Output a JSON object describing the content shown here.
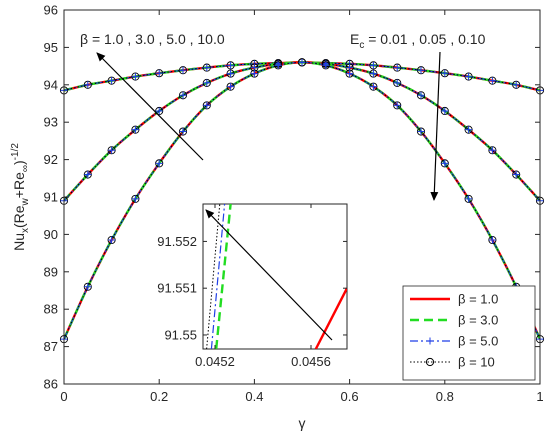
{
  "colors": {
    "red": "#ff0000",
    "green": "#22dd22",
    "blue": "#1f3fe6",
    "black": "#000000",
    "axis": "#262626"
  },
  "chart_data": [
    {
      "type": "line",
      "xlabel": "γ",
      "ylabel": {
        "base": "Nu",
        "sub1": "x",
        "mid": "(Re",
        "sub2": "w",
        "mid2": "+Re",
        "sub3": "∞",
        "close": ")",
        "sup": "-1/2"
      },
      "xlim": [
        0,
        1
      ],
      "ylim": [
        86,
        96
      ],
      "xticks": [
        0,
        0.2,
        0.4,
        0.6,
        0.8,
        1
      ],
      "xtick_labels": [
        "0",
        "0.2",
        "0.4",
        "0.6",
        "0.8",
        "1"
      ],
      "yticks": [
        86,
        87,
        88,
        89,
        90,
        91,
        92,
        93,
        94,
        95,
        96
      ],
      "ytick_labels": [
        "86",
        "87",
        "88",
        "89",
        "90",
        "91",
        "92",
        "93",
        "94",
        "95",
        "96"
      ],
      "legend_position": "bottom-right",
      "x": [
        0,
        0.05,
        0.1,
        0.15,
        0.2,
        0.25,
        0.3,
        0.35,
        0.4,
        0.45,
        0.5,
        0.55,
        0.6,
        0.65,
        0.7,
        0.75,
        0.8,
        0.85,
        0.9,
        0.95,
        1.0
      ],
      "curves": [
        {
          "label": "Ec = 0.01",
          "values": [
            93.85,
            94.0,
            94.11,
            94.22,
            94.31,
            94.39,
            94.46,
            94.52,
            94.56,
            94.58,
            94.6,
            94.58,
            94.56,
            94.52,
            94.46,
            94.39,
            94.31,
            94.22,
            94.11,
            94.0,
            93.85
          ]
        },
        {
          "label": "Ec = 0.05",
          "values": [
            90.9,
            91.6,
            92.25,
            92.8,
            93.3,
            93.72,
            94.05,
            94.3,
            94.46,
            94.56,
            94.6,
            94.56,
            94.46,
            94.3,
            94.05,
            93.72,
            93.3,
            92.8,
            92.25,
            91.6,
            90.9
          ]
        },
        {
          "label": "Ec = 0.10",
          "values": [
            87.2,
            88.6,
            89.85,
            90.95,
            91.9,
            92.75,
            93.45,
            93.95,
            94.3,
            94.52,
            94.6,
            94.52,
            94.3,
            93.95,
            93.45,
            92.75,
            91.9,
            90.95,
            89.85,
            88.6,
            87.2
          ]
        }
      ],
      "series": [
        {
          "name": "β = 1.0",
          "color": "#ff0000",
          "style": "solid"
        },
        {
          "name": "β = 3.0",
          "color": "#22dd22",
          "style": "dashed"
        },
        {
          "name": "β = 5.0",
          "color": "#1f3fe6",
          "style": "dashdot-plus"
        },
        {
          "name": "β = 10",
          "color": "#000000",
          "style": "dotted-circle"
        }
      ],
      "legend": [
        "β = 1.0",
        "β = 3.0",
        "β = 5.0",
        "β = 10"
      ],
      "annotations": {
        "beta_text": "β = 1.0 , 3.0 , 5.0 , 10.0",
        "ec_text": {
          "base": "E",
          "sub": "c",
          "rest": " = 0.01 , 0.05 , 0.10"
        }
      }
    },
    {
      "type": "line",
      "title": "",
      "xlim": [
        0.04515,
        0.04575
      ],
      "ylim": [
        91.5497,
        91.5528
      ],
      "xticks": [
        0.0452,
        0.0456
      ],
      "xtick_labels": [
        "0.0452",
        "0.0456"
      ],
      "yticks": [
        91.55,
        91.551,
        91.552
      ],
      "ytick_labels": [
        "91.55",
        "91.551",
        "91.552"
      ],
      "series": [
        {
          "name": "β = 1.0",
          "x": [
            0.04562,
            0.04575
          ],
          "y": [
            91.5497,
            91.551
          ]
        },
        {
          "name": "β = 3.0",
          "x": [
            0.045205,
            0.045265
          ],
          "y": [
            91.5497,
            91.5528
          ]
        },
        {
          "name": "β = 5.0",
          "x": [
            0.045185,
            0.04524
          ],
          "y": [
            91.5497,
            91.5528
          ]
        },
        {
          "name": "β = 10",
          "x": [
            0.045165,
            0.04522
          ],
          "y": [
            91.5497,
            91.5528
          ]
        }
      ]
    }
  ]
}
